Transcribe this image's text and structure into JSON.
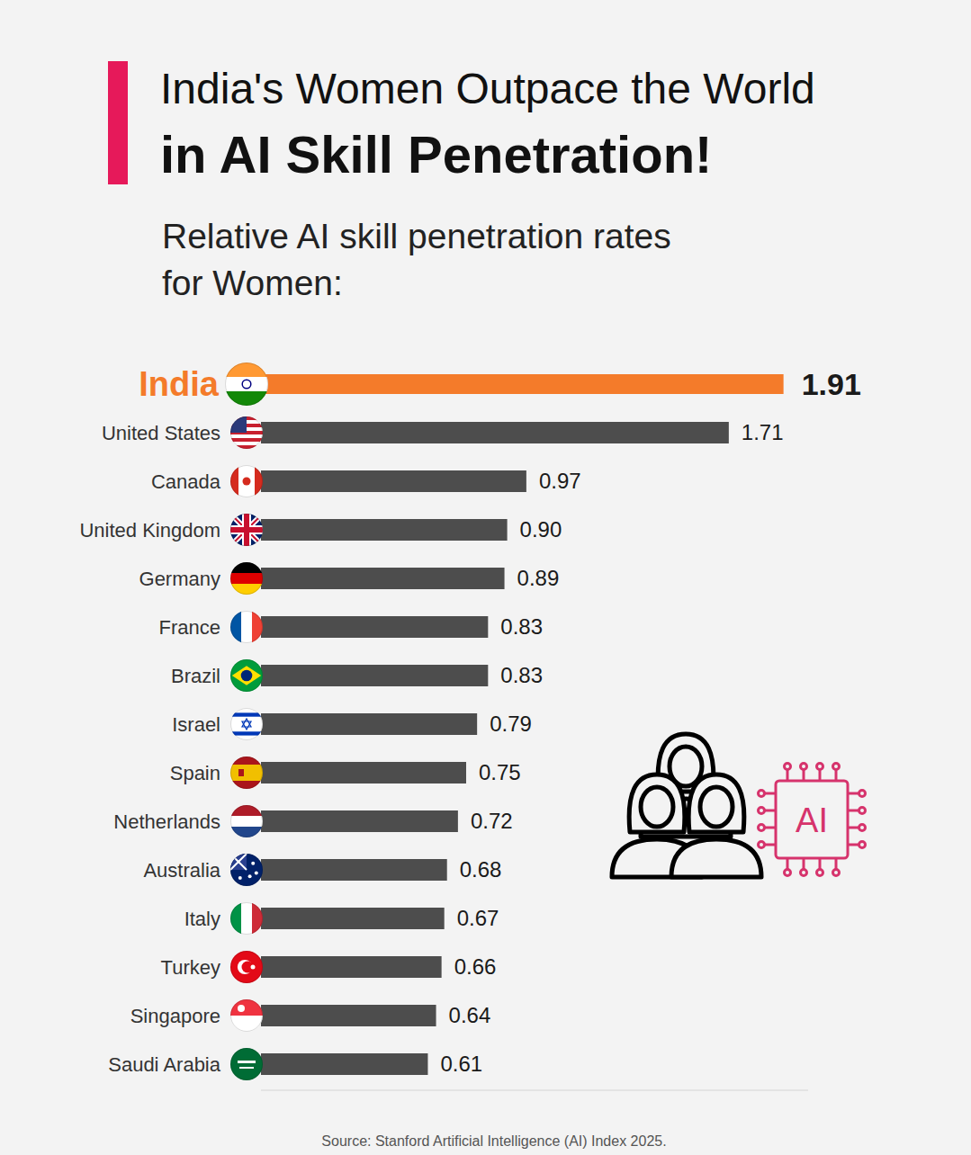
{
  "chart_data": {
    "type": "bar",
    "orientation": "horizontal",
    "title": [
      "India's Women Outpace the World",
      "in AI Skill Penetration!"
    ],
    "subtitle": [
      "Relative AI skill penetration rates",
      "for Women:"
    ],
    "categories": [
      "India",
      "United States",
      "Canada",
      "United Kingdom",
      "Germany",
      "France",
      "Brazil",
      "Israel",
      "Spain",
      "Netherlands",
      "Australia",
      "Italy",
      "Turkey",
      "Singapore",
      "Saudi Arabia"
    ],
    "values": [
      1.91,
      1.71,
      0.97,
      0.9,
      0.89,
      0.83,
      0.83,
      0.79,
      0.75,
      0.72,
      0.68,
      0.67,
      0.66,
      0.64,
      0.61
    ],
    "value_labels": [
      "1.91",
      "1.71",
      "0.97",
      "0.90",
      "0.89",
      "0.83",
      "0.83",
      "0.79",
      "0.75",
      "0.72",
      "0.68",
      "0.67",
      "0.66",
      "0.64",
      "0.61"
    ],
    "colors": [
      "#f47b2a",
      "#4d4d4d",
      "#4d4d4d",
      "#4d4d4d",
      "#4d4d4d",
      "#4d4d4d",
      "#4d4d4d",
      "#4d4d4d",
      "#4d4d4d",
      "#4d4d4d",
      "#4d4d4d",
      "#4d4d4d",
      "#4d4d4d",
      "#4d4d4d",
      "#4d4d4d"
    ],
    "xlim": [
      0,
      2
    ],
    "xticks": [],
    "grid": false,
    "data_labels": true,
    "tick_labels": "y",
    "annotations": [
      "AI"
    ],
    "source": "Source: Stanford Artificial Intelligence (AI) Index 2025."
  }
}
